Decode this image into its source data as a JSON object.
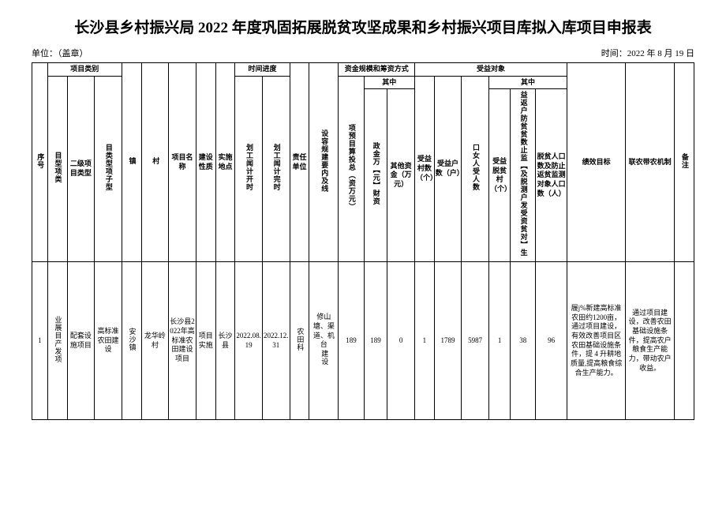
{
  "title": "长沙县乡村振兴局 2022 年度巩固拓展脱贫攻坚成果和乡村振兴项目库拟入库项目申报表",
  "meta": {
    "unit_label": "单位：（盖章）",
    "date_label": "时间：2022 年 8 月 19 日"
  },
  "headers": {
    "seq": "序号",
    "proj_category": "项目类别",
    "cat1": "目型项类",
    "cat2": "二级项目类型",
    "cat3": "目类型项子型",
    "town": "镇",
    "village": "村",
    "proj_name": "项目名称",
    "build_nature": "建设性质",
    "build_place": "实施地点",
    "schedule": "时间进度",
    "plan_start": "划工闻计开时",
    "plan_end": "划工闻计完时",
    "resp_unit": "责任单位",
    "spec": "设容规建要内及线",
    "funding": "资金规模和筹资方式",
    "budget": "项预目算投总（资万元）",
    "sub_in": "其中",
    "fiscal": "政金万【元】财资",
    "other_fund": "其他资金（万元）",
    "beneficiary": "受益对象",
    "v_count": "受益村数（个）",
    "h_count": "受益户数（户）",
    "p_count": "口女人受人数",
    "pv_count": "受益脱贫村（个）",
    "ph_count": "益返户防贫贫数止监【及脱测户发受资贫对】生",
    "pp_count": "脱贫人口数及防止返贫监测对象人口数（人）",
    "perf": "绩效目标",
    "link": "联农带农机制",
    "remark": "备注"
  },
  "rows": [
    {
      "seq": "1",
      "cat1": "业展目产发项",
      "cat2": "配套设施项目",
      "cat3": "农田建设",
      "cat3_extra": "高标准",
      "town": "安沙镇",
      "village": "龙华岭村",
      "proj_name": "长沙县2022年高标准农田建设项目",
      "build_nature": "项目实施",
      "build_place": "长沙县",
      "plan_start": "2022.08.19",
      "plan_end": "2022.12.31",
      "resp_unit": "农田科",
      "spec": "修山塘、渠道、机台",
      "spec_extra": "建设",
      "budget": "189",
      "fiscal": "189",
      "other_fund": "0",
      "v_count": "1",
      "h_count": "1789",
      "p_count": "5987",
      "pv_count": "1",
      "ph_count": "38",
      "pp_count": "96",
      "perf": "履j%新建高标准农田约1200亩，通过项目建设，有效改善项目区农田基础设施条件，提 4 升耕地质量,提高粮食综合生产能力。",
      "link": "通过项目建设，改善农田基础设施条件，提高农户粮食生产能力，带动农户收益。",
      "remark": ""
    }
  ]
}
